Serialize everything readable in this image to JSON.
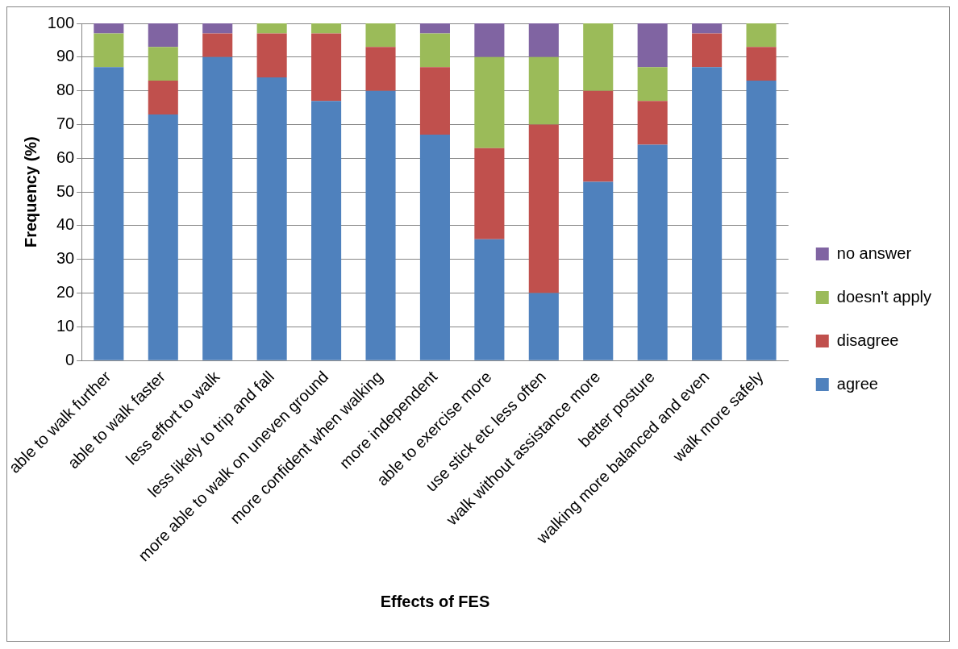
{
  "chart_data": {
    "type": "bar",
    "stacked": true,
    "xlabel": "Effects of FES",
    "ylabel": "Frequency (%)",
    "categories": [
      "able to walk further",
      "able to walk faster",
      "less effort to walk",
      "less likely to trip and fall",
      "more able to walk on uneven ground",
      "more confident when walking",
      "more independent",
      "able to exercise more",
      "use stick etc less often",
      "walk without assistance more",
      "better posture",
      "walking more balanced and even",
      "walk more safely"
    ],
    "series": [
      {
        "name": "agree",
        "color": "#4f81bd",
        "values": [
          87,
          73,
          90,
          84,
          77,
          80,
          67,
          36,
          20,
          53,
          64,
          87,
          83
        ]
      },
      {
        "name": "disagree",
        "color": "#c0504d",
        "values": [
          0,
          10,
          7,
          13,
          20,
          13,
          20,
          27,
          50,
          27,
          13,
          10,
          10
        ]
      },
      {
        "name": "doesn't apply",
        "color": "#9bbb59",
        "values": [
          10,
          10,
          0,
          3,
          3,
          7,
          10,
          27,
          20,
          20,
          10,
          0,
          7
        ]
      },
      {
        "name": "no answer",
        "color": "#8064a2",
        "values": [
          3,
          7,
          3,
          0,
          0,
          0,
          3,
          10,
          10,
          0,
          13,
          3,
          0
        ]
      }
    ],
    "ylim": [
      0,
      100
    ],
    "yticks": [
      0,
      10,
      20,
      30,
      40,
      50,
      60,
      70,
      80,
      90,
      100
    ],
    "grid": "y",
    "legend": "right"
  }
}
